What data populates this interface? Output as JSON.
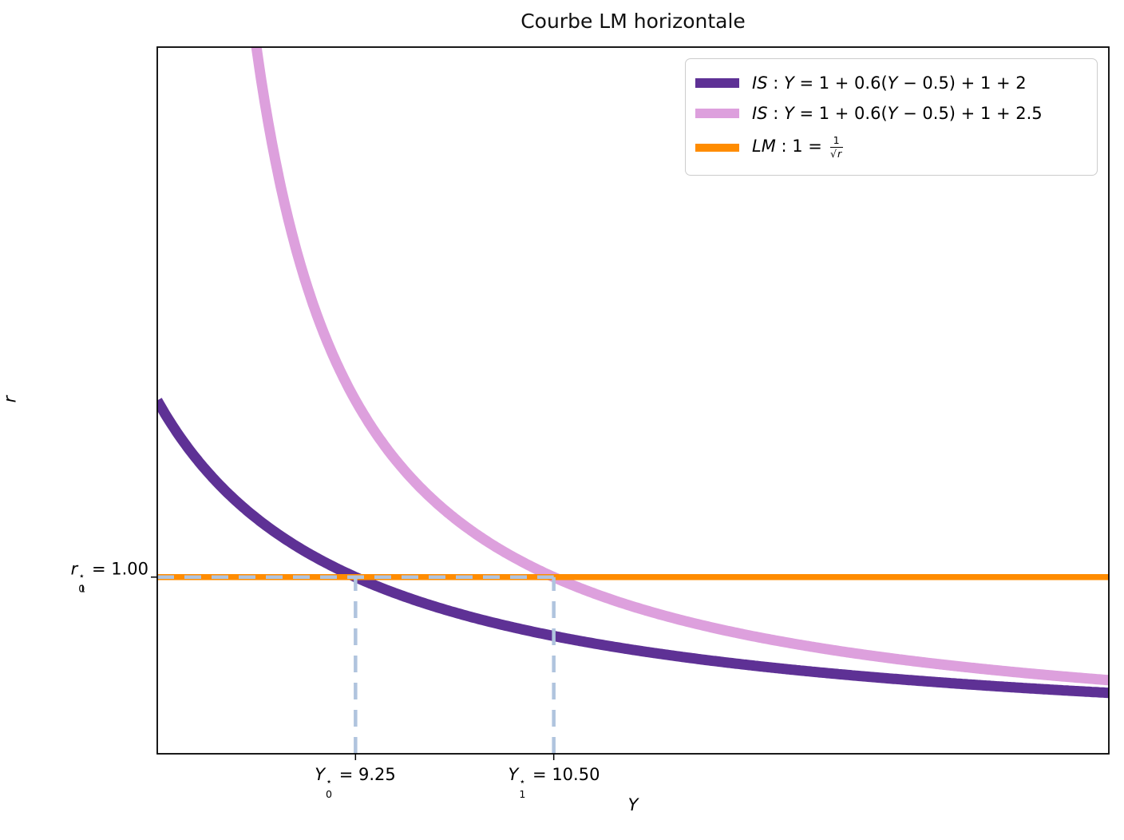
{
  "title": "Courbe LM horizontale",
  "axes": {
    "xlabel": "Y",
    "ylabel": "r"
  },
  "legend": {
    "entries": [
      {
        "id": "is-initial",
        "label_text": "IS : Y = 1 + 0.6(Y − 0.5) + 1 + 2",
        "color": "#5e3195",
        "swatch_height": 12,
        "parts": [
          {
            "t": "IS",
            "i": true
          },
          {
            "t": " : ",
            "i": false
          },
          {
            "t": "Y",
            "i": true
          },
          {
            "t": " = 1 + 0.6(",
            "i": false
          },
          {
            "t": "Y",
            "i": true
          },
          {
            "t": " − 0.5) + 1 + 2",
            "i": false
          }
        ]
      },
      {
        "id": "is-shifted",
        "label_text": "IS : Y = 1 + 0.6(Y − 0.5) + 1 + 2.5",
        "color": "#dda0dd",
        "swatch_height": 12,
        "parts": [
          {
            "t": "IS",
            "i": true
          },
          {
            "t": " : ",
            "i": false
          },
          {
            "t": "Y",
            "i": true
          },
          {
            "t": " = 1 + 0.6(",
            "i": false
          },
          {
            "t": "Y",
            "i": true
          },
          {
            "t": " − 0.5) + 1 + 2.5",
            "i": false
          }
        ]
      },
      {
        "id": "lm",
        "label_text": "LM : 1 = 1/√r",
        "color": "#ff8c00",
        "swatch_height": 10,
        "parts": [
          {
            "t": "LM",
            "i": true
          },
          {
            "t": " : 1 = ",
            "i": false
          }
        ],
        "frac": {
          "num": "1",
          "den_radical": "r"
        }
      }
    ]
  },
  "ticks": {
    "x": [
      {
        "text": "Y₀⋆ = 9.25",
        "var": "Y",
        "subs": [
          "0"
        ],
        "sup": "⋆",
        "eq": " = 9.25",
        "value": 9.25
      },
      {
        "text": "Y₁⋆ = 10.50",
        "var": "Y",
        "subs": [
          "1"
        ],
        "sup": "⋆",
        "eq": " = 10.50",
        "value": 10.5
      }
    ],
    "y": [
      {
        "text": "r₀⋆ = 1.00",
        "var": "r",
        "subs": [
          "0",
          "1"
        ],
        "sup": "⋆",
        "eq": " = 1.00",
        "value": 1.0
      }
    ]
  },
  "chart_data": {
    "type": "line",
    "title": "Courbe LM horizontale",
    "xlabel": "Y",
    "ylabel": "r",
    "xlim": [
      8,
      14
    ],
    "ylim": [
      0,
      4
    ],
    "grid": false,
    "legend_position": "upper right",
    "series": [
      {
        "label": "IS : Y = 1 + 0.6(Y − 0.5) + 1 + 2",
        "kind": "curve",
        "formula": "r = 1 / (0.4·Y − 2.7)",
        "params": {
          "a": 0.4,
          "b": 2.7
        },
        "x_start": 8.0,
        "x_end": 14.0,
        "color": "#5e3195",
        "linewidth": 13
      },
      {
        "label": "IS : Y = 1 + 0.6(Y − 0.5) + 1 + 2.5",
        "kind": "curve",
        "formula": "r = 1 / (0.4·Y − 3.2)",
        "params": {
          "a": 0.4,
          "b": 3.2
        },
        "x_start": 8.35,
        "x_end": 14.0,
        "color": "#dda0dd",
        "linewidth": 13
      },
      {
        "label": "LM : 1 = 1/√r",
        "kind": "hline",
        "y": 1.0,
        "color": "#ff8c00",
        "linewidth": 7.5
      }
    ],
    "annotations": {
      "equilibria": [
        {
          "Y": 9.25,
          "r": 1.0,
          "x_label": "Y₀⋆ = 9.25",
          "y_label": "r₀⋆ = 1.00"
        },
        {
          "Y": 10.5,
          "r": 1.0,
          "x_label": "Y₁⋆ = 10.50",
          "y_label": "r₁⋆ = 1.00"
        }
      ],
      "guide_style": {
        "color": "#b0c4de",
        "dash": [
          21,
          13
        ],
        "linewidth": 4.5
      }
    },
    "frame_color": "#000000"
  }
}
